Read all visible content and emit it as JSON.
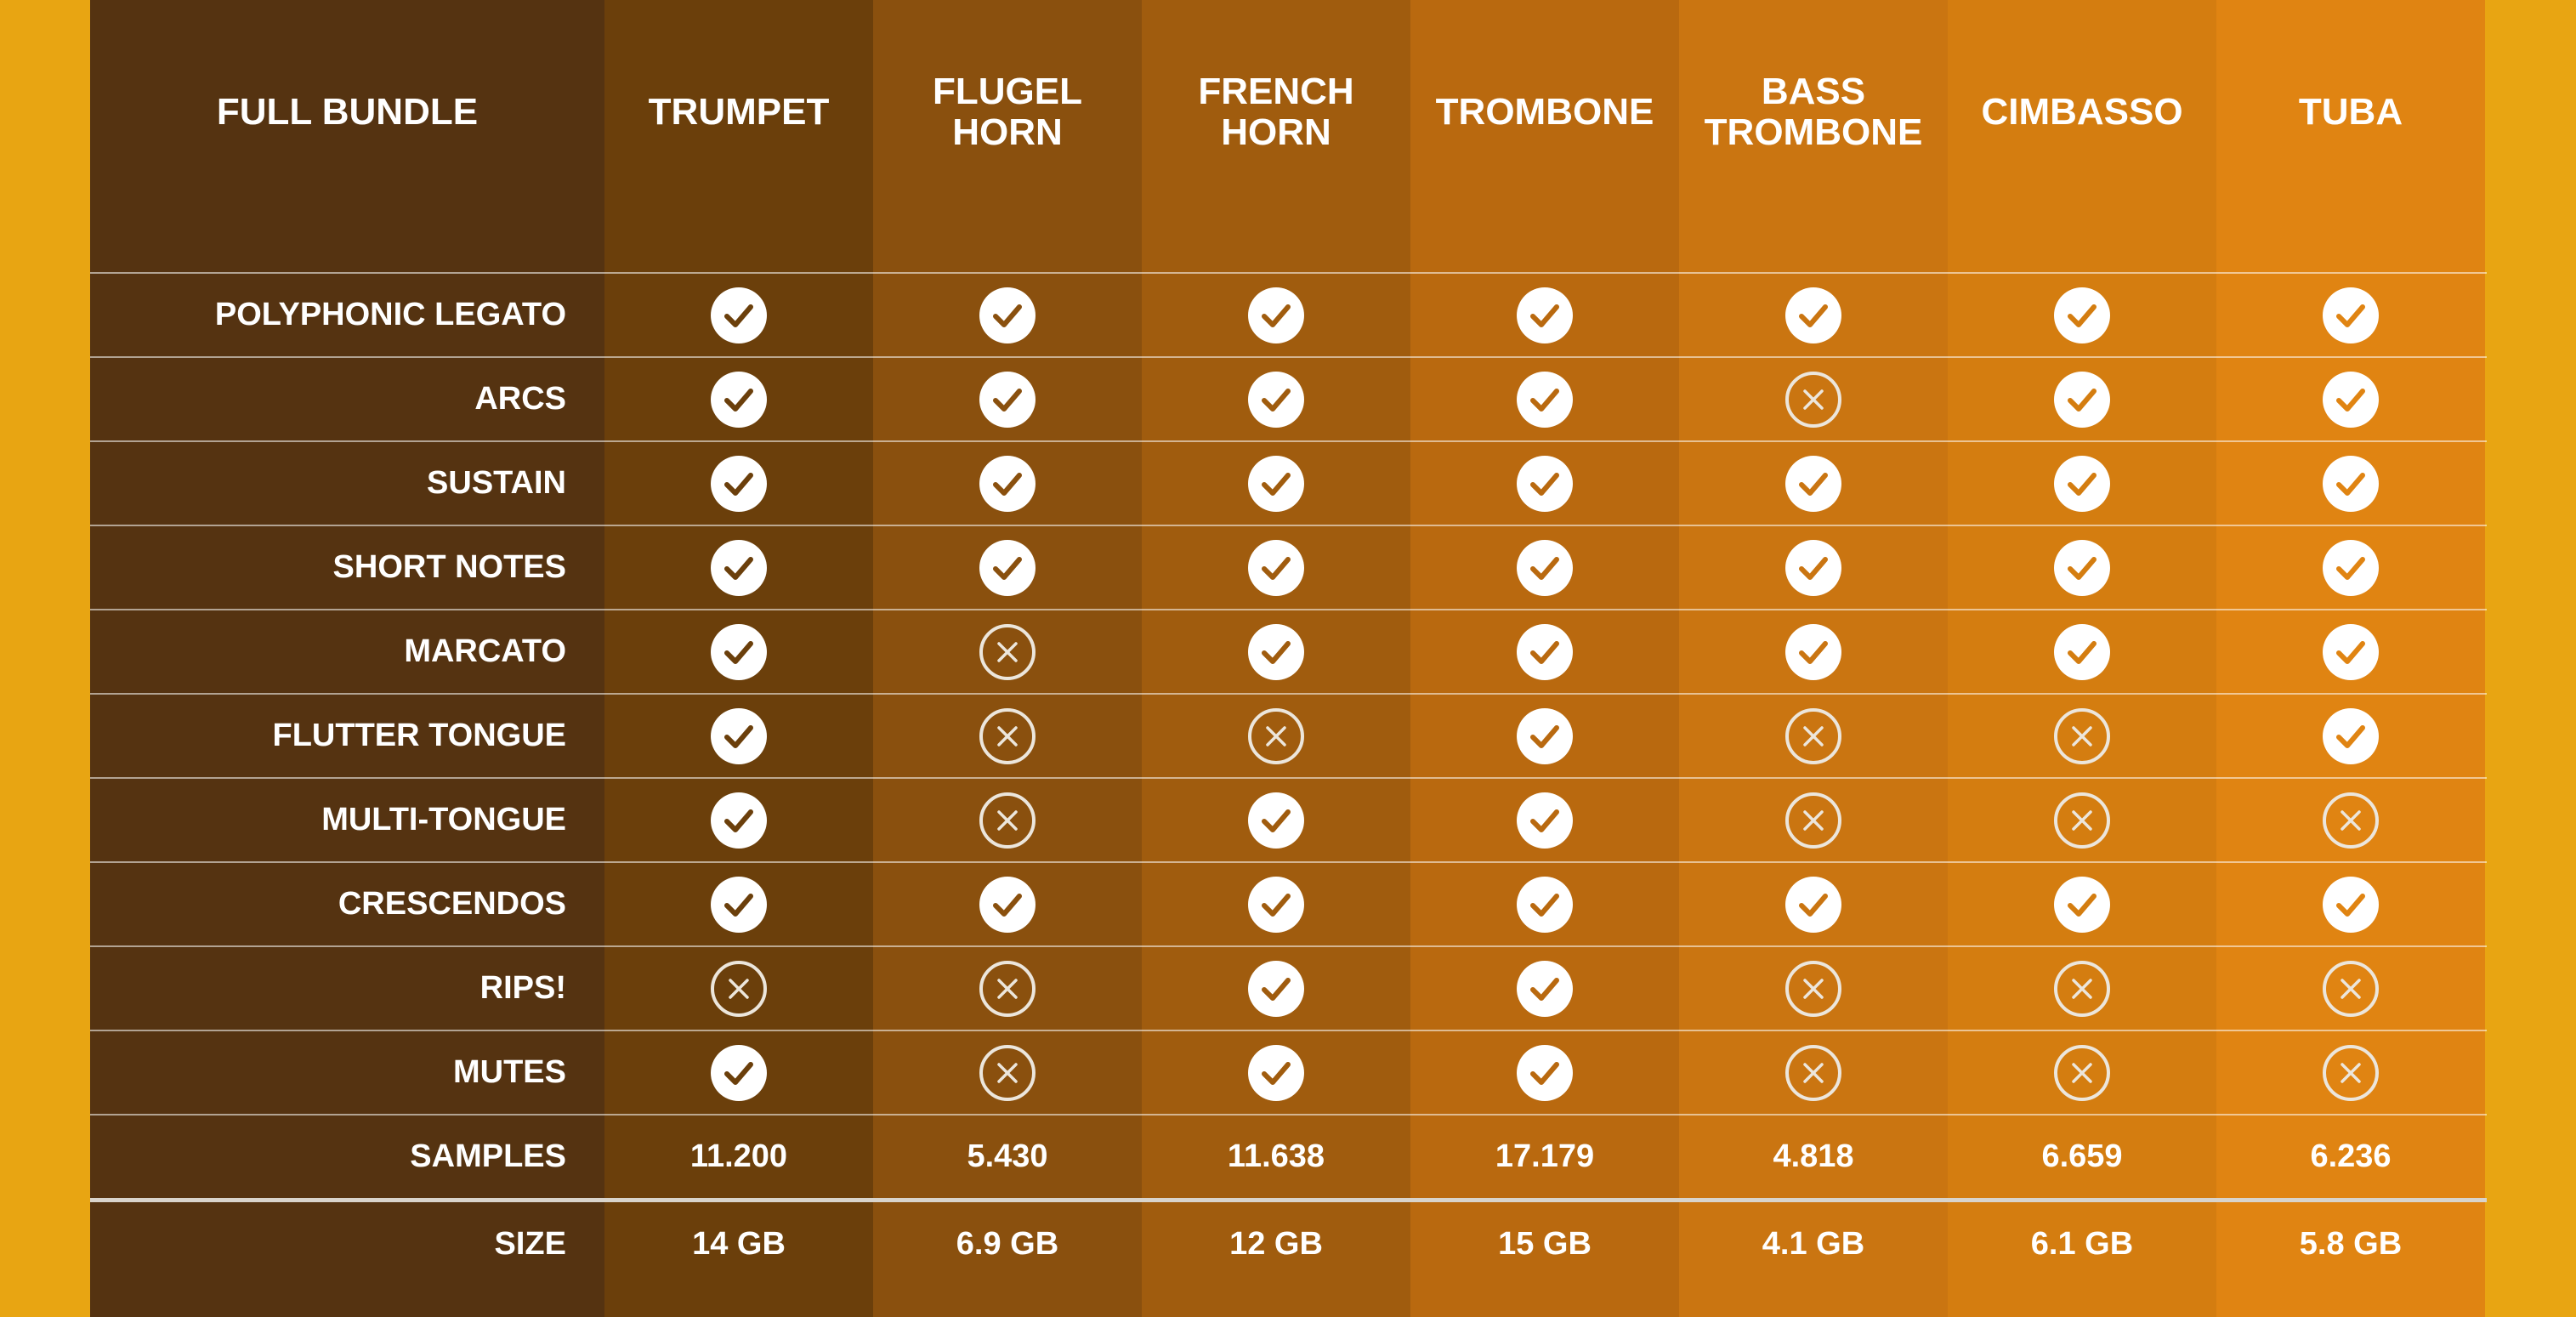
{
  "colors": {
    "edge": "#e8a512",
    "label_column": "#553311",
    "columns": [
      "#6b3f0b",
      "#8a500e",
      "#a05c0e",
      "#b9690f",
      "#ca7511",
      "#d47d10",
      "#e08412"
    ]
  },
  "corner_label": "FULL BUNDLE",
  "columns": [
    {
      "name": "TRUMPET"
    },
    {
      "name": "FLUGEL HORN"
    },
    {
      "name": "FRENCH HORN"
    },
    {
      "name": "TROMBONE"
    },
    {
      "name": "BASS TROMBONE"
    },
    {
      "name": "CIMBASSO"
    },
    {
      "name": "TUBA"
    }
  ],
  "features": [
    {
      "label": "POLYPHONIC LEGATO",
      "values": [
        true,
        true,
        true,
        true,
        true,
        true,
        true
      ]
    },
    {
      "label": "ARCS",
      "values": [
        true,
        true,
        true,
        true,
        false,
        true,
        true
      ]
    },
    {
      "label": "SUSTAIN",
      "values": [
        true,
        true,
        true,
        true,
        true,
        true,
        true
      ]
    },
    {
      "label": "SHORT NOTES",
      "values": [
        true,
        true,
        true,
        true,
        true,
        true,
        true
      ]
    },
    {
      "label": "MARCATO",
      "values": [
        true,
        false,
        true,
        true,
        true,
        true,
        true
      ]
    },
    {
      "label": "FLUTTER TONGUE",
      "values": [
        true,
        false,
        false,
        true,
        false,
        false,
        true
      ]
    },
    {
      "label": "MULTI-TONGUE",
      "values": [
        true,
        false,
        true,
        true,
        false,
        false,
        false
      ]
    },
    {
      "label": "CRESCENDOS",
      "values": [
        true,
        true,
        true,
        true,
        true,
        true,
        true
      ]
    },
    {
      "label": "RIPS!",
      "values": [
        false,
        false,
        true,
        true,
        false,
        false,
        false
      ]
    },
    {
      "label": "MUTES",
      "values": [
        true,
        false,
        true,
        true,
        false,
        false,
        false
      ]
    }
  ],
  "icons": {
    "yes": "check-circle-icon",
    "no": "x-circle-icon"
  },
  "samples": {
    "label": "SAMPLES",
    "values": [
      "11.200",
      "5.430",
      "11.638",
      "17.179",
      "4.818",
      "6.659",
      "6.236"
    ]
  },
  "size": {
    "label": "SIZE",
    "values": [
      "14 GB",
      "6.9 GB",
      "12 GB",
      "15 GB",
      "4.1 GB",
      "6.1 GB",
      "5.8 GB"
    ]
  }
}
